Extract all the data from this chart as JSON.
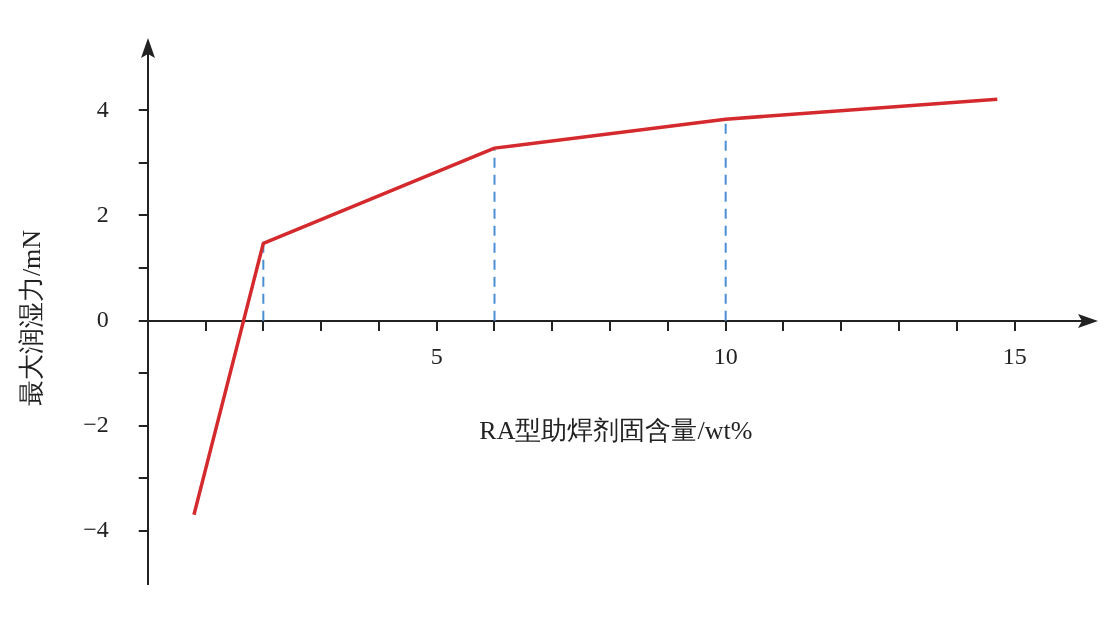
{
  "chart_data": {
    "type": "line",
    "xlabel": "RA型助焊剂固含量/wt%",
    "ylabel": "最大润湿力/mN",
    "x": [
      0.8,
      2,
      6,
      10,
      14.7
    ],
    "series": [
      {
        "color": "#d42a2e",
        "values": [
          -3.69,
          1.47,
          3.28,
          3.83,
          4.21
        ]
      }
    ],
    "xlim": [
      0,
      16.2
    ],
    "ylim": [
      -5,
      5.1
    ],
    "xticks": [
      {
        "value": 1,
        "label": null
      },
      {
        "value": 2,
        "label": null
      },
      {
        "value": 3,
        "label": null
      },
      {
        "value": 4,
        "label": null
      },
      5,
      {
        "value": 6,
        "label": null
      },
      {
        "value": 7,
        "label": null
      },
      {
        "value": 8,
        "label": null
      },
      {
        "value": 9,
        "label": null
      },
      10,
      {
        "value": 11,
        "label": null
      },
      {
        "value": 12,
        "label": null
      },
      {
        "value": 13,
        "label": null
      },
      {
        "value": 14,
        "label": null
      },
      15
    ],
    "yticks": [
      -4,
      {
        "value": -3,
        "label": null
      },
      -2,
      {
        "value": -1,
        "label": null
      },
      0,
      {
        "value": 1,
        "label": null
      },
      2,
      {
        "value": 3,
        "label": null
      },
      4
    ],
    "ref_lines": [
      {
        "axis": "x",
        "value": 2,
        "color": "#4a8fd6",
        "line_style": "dashed"
      },
      {
        "axis": "x",
        "value": 6,
        "color": "#4a8fd6",
        "line_style": "dashed"
      },
      {
        "axis": "x",
        "value": 10,
        "color": "#4a8fd6",
        "line_style": "dashed"
      }
    ],
    "grid": false,
    "legend": false,
    "marker": "none",
    "line_style": "solid"
  }
}
